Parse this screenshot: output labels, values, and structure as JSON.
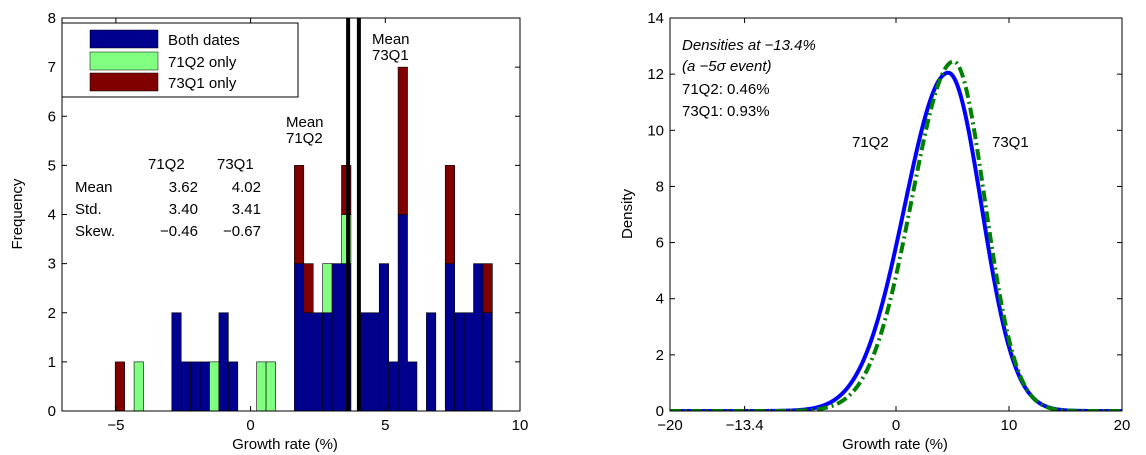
{
  "chart_data": [
    {
      "type": "bar",
      "stacked": true,
      "xlabel": "Growth rate (%)",
      "ylabel": "Frequency",
      "xlim": [
        -7,
        10
      ],
      "ylim": [
        0,
        8
      ],
      "xticks": [
        -5,
        0,
        5,
        10
      ],
      "yticks": [
        0,
        1,
        2,
        3,
        4,
        5,
        6,
        7,
        8
      ],
      "bin_width": 0.35,
      "legend": {
        "position": "top-left",
        "entries": [
          "Both dates",
          "71Q2 only",
          "73Q1 only"
        ]
      },
      "colors": {
        "Both dates": "#00008f",
        "71Q2 only": "#80ff80",
        "73Q1 only": "#800000",
        "frame": "#000000"
      },
      "bins": [
        -4.85,
        -4.15,
        -2.75,
        -2.4,
        -2.05,
        -1.7,
        -1.35,
        -1.0,
        -0.65,
        0.4,
        0.75,
        1.8,
        2.15,
        2.5,
        2.85,
        3.2,
        3.55,
        4.25,
        4.6,
        4.95,
        5.3,
        5.65,
        6.0,
        6.35,
        6.7,
        7.4,
        7.75,
        8.1,
        8.45,
        8.8
      ],
      "series": [
        {
          "name": "Both dates",
          "values": [
            0,
            0,
            2,
            1,
            1,
            1,
            0,
            2,
            1,
            0,
            0,
            3,
            2,
            2,
            2,
            3,
            3,
            2,
            2,
            3,
            1,
            4,
            1,
            0,
            2,
            3,
            2,
            2,
            3,
            2
          ]
        },
        {
          "name": "71Q2 only",
          "values": [
            0,
            1,
            0,
            0,
            0,
            0,
            1,
            0,
            0,
            1,
            1,
            0,
            0,
            0,
            1,
            0,
            1,
            0,
            0,
            0,
            0,
            0,
            0,
            0,
            0,
            0,
            0,
            0,
            0,
            0
          ]
        },
        {
          "name": "73Q1 only",
          "values": [
            1,
            0,
            0,
            0,
            0,
            0,
            0,
            0,
            0,
            0,
            0,
            2,
            1,
            0,
            0,
            0,
            1,
            0,
            0,
            0,
            0,
            3,
            0,
            0,
            0,
            2,
            0,
            0,
            0,
            1
          ]
        }
      ],
      "mean_lines": [
        {
          "label": "Mean\n71Q2",
          "value": 3.62
        },
        {
          "label": "Mean\n73Q1",
          "value": 4.02
        }
      ],
      "stats_table": {
        "header": [
          "",
          "71Q2",
          "73Q1"
        ],
        "rows": [
          [
            "Mean",
            "3.62",
            "4.02"
          ],
          [
            "Std.",
            "3.40",
            "3.41"
          ],
          [
            "Skew.",
            "−0.46",
            "−0.67"
          ]
        ]
      }
    },
    {
      "type": "line",
      "xlabel": "Growth rate (%)",
      "ylabel": "Density",
      "xlim": [
        -20,
        20
      ],
      "ylim": [
        0,
        14
      ],
      "xticks": [
        -20,
        -13.4,
        0,
        10,
        20
      ],
      "xtick_labels": [
        "−20",
        "−13.4",
        "0",
        "10",
        "20"
      ],
      "yticks": [
        0,
        2,
        4,
        6,
        8,
        10,
        12,
        14
      ],
      "series": [
        {
          "name": "71Q2",
          "color": "#0000ff",
          "style": "solid",
          "mode": 4.62,
          "peak": 12.05,
          "sd_left": 3.85,
          "sd_right": 2.95
        },
        {
          "name": "73Q1",
          "color": "#008000",
          "style": "dash-dot",
          "mode": 5.1,
          "peak": 12.45,
          "sd_left": 3.7,
          "sd_right": 2.75
        }
      ],
      "annotation": {
        "title_line1": "Densities at −13.4%",
        "title_line2": "(a −5σ event)",
        "line3": "71Q2: 0.46%",
        "line4": "73Q1: 0.93%"
      }
    }
  ],
  "axis_tick_text": {
    "hist_x": [
      "−5",
      "0",
      "5",
      "10"
    ],
    "hist_y": [
      "0",
      "1",
      "2",
      "3",
      "4",
      "5",
      "6",
      "7",
      "8"
    ],
    "dens_y": [
      "0",
      "2",
      "4",
      "6",
      "8",
      "10",
      "12",
      "14"
    ]
  }
}
